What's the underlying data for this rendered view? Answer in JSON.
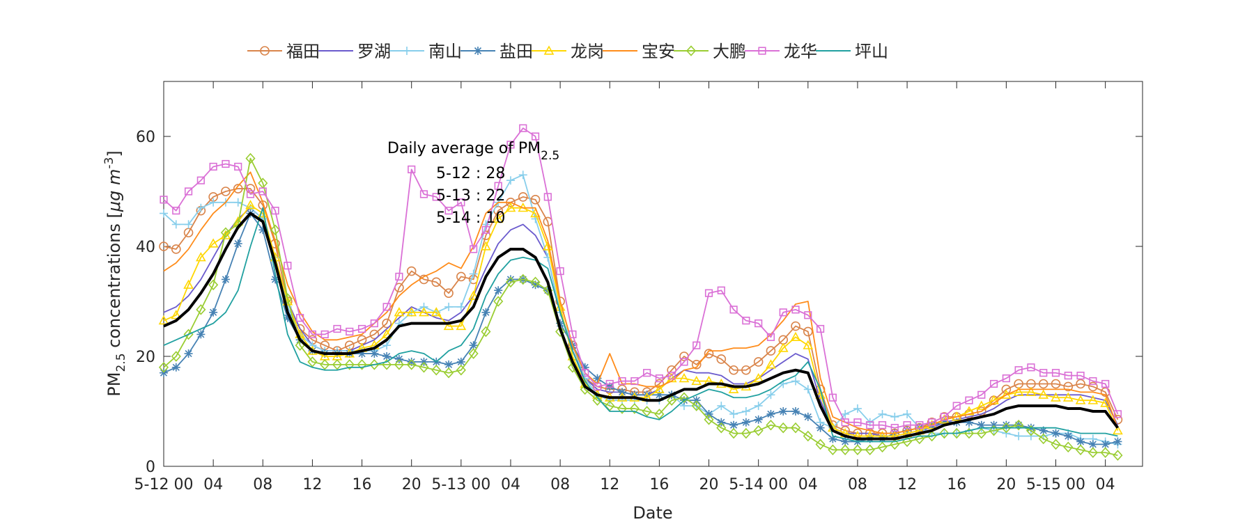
{
  "chart_data": {
    "type": "line",
    "xlabel": "Date",
    "ylabel_main": "PM",
    "ylabel_sub": "2.5",
    "ylabel_rest": " concentrations [",
    "ylabel_mu": "μg m",
    "ylabel_sup": "-3",
    "ylabel_close": "]",
    "ylim": [
      0,
      70
    ],
    "yticks": [
      0,
      20,
      40,
      60
    ],
    "x_range_hours": [
      0,
      79
    ],
    "xticks": [
      {
        "h": 0,
        "label": "5-12 00"
      },
      {
        "h": 4,
        "label": "04"
      },
      {
        "h": 8,
        "label": "08"
      },
      {
        "h": 12,
        "label": "12"
      },
      {
        "h": 16,
        "label": "16"
      },
      {
        "h": 20,
        "label": "20"
      },
      {
        "h": 24,
        "label": "5-13 00"
      },
      {
        "h": 28,
        "label": "04"
      },
      {
        "h": 32,
        "label": "08"
      },
      {
        "h": 36,
        "label": "12"
      },
      {
        "h": 40,
        "label": "16"
      },
      {
        "h": 44,
        "label": "20"
      },
      {
        "h": 48,
        "label": "5-14 00"
      },
      {
        "h": 52,
        "label": "04"
      },
      {
        "h": 56,
        "label": "08"
      },
      {
        "h": 60,
        "label": "12"
      },
      {
        "h": 64,
        "label": "16"
      },
      {
        "h": 68,
        "label": "20"
      },
      {
        "h": 72,
        "label": "5-15 00"
      },
      {
        "h": 76,
        "label": "04"
      }
    ],
    "legend_position": "top",
    "annotation": {
      "title_main": "Daily average of PM",
      "title_sub": "2.5",
      "lines": [
        "5-12 : 28",
        "5-13 : 22",
        "5-14 : 10"
      ]
    },
    "colors": {
      "futian": "#D9844A",
      "luohu": "#6A5ACD",
      "nanshan": "#87CEEB",
      "yantian": "#4682B4",
      "longgang": "#FFD700",
      "baoan": "#FF8C1A",
      "dapeng": "#9ACD32",
      "longhua": "#DA70D6",
      "pingshan": "#20A0A0",
      "average": "#000000"
    },
    "series": [
      {
        "name": "福田",
        "key": "futian",
        "marker": "circle",
        "values": [
          40,
          39.5,
          42.5,
          46.5,
          49,
          50,
          50.5,
          50.5,
          47.5,
          40.5,
          30,
          25,
          23,
          22,
          21,
          22,
          23,
          24,
          26,
          32.5,
          35.5,
          34,
          33.5,
          31.5,
          34.5,
          34,
          42,
          46.5,
          48,
          49,
          48.5,
          44.5,
          30,
          22,
          16,
          14.5,
          14,
          14,
          13.5,
          13.5,
          15,
          17.5,
          20,
          18.5,
          20.5,
          19.5,
          17.5,
          17.5,
          19,
          21,
          23,
          25.5,
          24.5,
          14,
          7.5,
          6.5,
          6,
          6,
          6,
          6,
          6.5,
          7,
          8,
          9,
          9,
          9.5,
          10,
          12,
          14,
          15,
          15,
          15,
          15,
          14.5,
          15,
          14.5,
          13.5,
          8.5
        ]
      },
      {
        "name": "罗湖",
        "key": "luohu",
        "marker": "none",
        "values": [
          28,
          29,
          31,
          34,
          38,
          42,
          45,
          47,
          45,
          38,
          30,
          25,
          22,
          21,
          21,
          21,
          22,
          23,
          25,
          27,
          29,
          28,
          27,
          26.5,
          28,
          31,
          36,
          40.5,
          43,
          44,
          42,
          38,
          28,
          21,
          16,
          14,
          13.5,
          13.5,
          13,
          13,
          14,
          16,
          17.5,
          17,
          17,
          16.5,
          15,
          15,
          16,
          17.5,
          19,
          20.5,
          19.5,
          12,
          7,
          6,
          6,
          6,
          5.5,
          5.5,
          6,
          6.5,
          7,
          8,
          8.5,
          9,
          9.5,
          10.5,
          12,
          13,
          13,
          13,
          13,
          13,
          13,
          12.5,
          12,
          7.5
        ]
      },
      {
        "name": "南山",
        "key": "nanshan",
        "marker": "plus",
        "values": [
          46,
          44,
          44,
          47,
          48,
          48,
          48,
          47,
          45,
          38,
          29,
          24,
          22,
          21,
          21,
          21,
          21,
          21,
          22,
          26,
          28,
          29,
          28,
          29,
          29,
          35,
          44,
          48,
          52,
          53,
          45,
          38,
          28,
          22,
          16,
          13,
          12,
          12,
          12,
          12,
          12,
          13,
          11,
          11,
          9.5,
          11,
          9.5,
          10,
          11,
          13,
          15,
          15.5,
          14,
          8,
          7,
          9.5,
          10.5,
          8,
          9.5,
          9,
          9.5,
          7,
          6,
          6,
          6,
          6.5,
          7,
          6.5,
          6,
          5.5,
          5.5,
          5.5,
          6,
          6,
          5,
          5,
          4.5,
          4
        ]
      },
      {
        "name": "盐田",
        "key": "yantian",
        "marker": "asterisk",
        "values": [
          17,
          18,
          20.5,
          24,
          28,
          34,
          40.5,
          46,
          43,
          34,
          27,
          23,
          21,
          20.5,
          20.5,
          20.5,
          20.5,
          20.5,
          20,
          19.5,
          19,
          19,
          19,
          18.5,
          19,
          22,
          28,
          32,
          34,
          34,
          33,
          32,
          26,
          22,
          18,
          16,
          14.5,
          13.5,
          13,
          13,
          13,
          13,
          12,
          12,
          9.5,
          8,
          7.5,
          8,
          8.5,
          9.5,
          10,
          10,
          9,
          7,
          5,
          4.5,
          4.5,
          5,
          5,
          6,
          6.5,
          7,
          7.5,
          8,
          8,
          8,
          7.5,
          7.5,
          7.5,
          7.5,
          7,
          6.5,
          6,
          5.5,
          4.5,
          4,
          4,
          4.5
        ]
      },
      {
        "name": "龙岗",
        "key": "longgang",
        "marker": "triangle",
        "values": [
          26.5,
          27.5,
          33,
          38,
          40.5,
          42,
          44.5,
          47.5,
          46,
          38,
          30,
          24,
          21,
          20,
          20,
          20.5,
          21.5,
          22,
          24,
          28,
          28,
          28,
          28,
          25.5,
          25.5,
          31,
          40,
          45,
          47,
          47,
          46,
          40,
          29,
          20,
          15,
          13,
          12.5,
          12.5,
          12.5,
          12.5,
          14,
          16,
          16,
          15.5,
          15.5,
          15,
          14,
          14.5,
          16,
          18.5,
          21.5,
          23.5,
          22,
          13,
          7,
          6,
          5.5,
          5.5,
          5.5,
          5.5,
          6,
          6.5,
          7.5,
          8.5,
          9,
          10,
          11,
          12,
          13,
          13.5,
          13.5,
          13,
          12.5,
          12.5,
          12,
          12,
          11.5,
          6.5
        ]
      },
      {
        "name": "宝安",
        "key": "baoan",
        "marker": "none",
        "values": [
          35.5,
          37,
          39.5,
          43,
          46,
          48,
          51,
          53.5,
          48,
          41,
          33,
          28,
          24.5,
          23,
          23,
          23.5,
          24,
          26,
          28,
          31,
          33,
          34.5,
          35.5,
          37,
          36,
          40,
          46,
          48,
          48,
          47,
          47,
          41,
          30,
          22,
          17,
          15,
          20.5,
          15,
          15,
          14.5,
          14.5,
          15.5,
          17.5,
          18,
          21,
          21,
          21.5,
          21.5,
          22,
          24,
          26.5,
          29.5,
          30,
          16,
          9,
          8,
          7,
          6.5,
          6,
          6,
          6.5,
          7,
          7.5,
          8.5,
          9,
          9.5,
          10,
          11.5,
          13,
          14,
          14,
          14,
          14,
          14,
          13.5,
          13.5,
          13,
          7
        ]
      },
      {
        "name": "大鹏",
        "key": "dapeng",
        "marker": "diamond",
        "values": [
          18,
          20,
          24,
          28.5,
          33,
          42.5,
          44,
          56,
          51.5,
          43,
          30.5,
          22,
          19,
          18.5,
          18.5,
          18.5,
          18.5,
          18.5,
          18.5,
          18.5,
          18.5,
          18,
          17.5,
          17,
          17.5,
          20.5,
          24.5,
          30,
          33.5,
          34,
          33.5,
          32,
          24.5,
          18,
          14,
          12,
          11,
          10.5,
          10.5,
          10,
          9.5,
          12,
          12.5,
          11,
          8.5,
          7,
          6,
          6,
          6.5,
          7.5,
          7,
          7,
          5.5,
          4,
          3,
          3,
          3,
          3,
          3.5,
          4,
          4.5,
          5,
          5.5,
          6,
          6,
          6,
          6,
          6.5,
          7,
          7.5,
          6.5,
          5,
          4,
          3.5,
          3,
          2.5,
          2.5,
          2
        ]
      },
      {
        "name": "龙华",
        "key": "longhua",
        "marker": "square",
        "values": [
          48.5,
          46.5,
          50,
          52,
          54.5,
          55,
          54.5,
          49.5,
          50,
          46.5,
          36.5,
          27,
          24,
          24,
          25,
          24.5,
          25,
          26,
          29,
          34.5,
          54,
          49.5,
          49,
          46.5,
          48,
          39.5,
          43,
          51,
          58.5,
          61.5,
          60,
          49,
          35.5,
          24,
          17,
          14.5,
          15,
          15.5,
          15.5,
          17,
          16,
          16.5,
          19,
          22,
          31.5,
          32,
          28.5,
          26.5,
          26,
          23.5,
          28,
          28.5,
          27.5,
          25,
          12.5,
          8,
          8,
          7.5,
          7.5,
          7,
          7.5,
          7.5,
          8,
          9,
          11,
          12,
          13,
          15,
          16,
          17.5,
          18,
          17,
          17,
          16.5,
          16.5,
          15.5,
          15,
          9.5
        ]
      },
      {
        "name": "坪山",
        "key": "pingshan",
        "marker": "none",
        "values": [
          22,
          23,
          24,
          25,
          26,
          28,
          32,
          40,
          47,
          35,
          24,
          19,
          18,
          17.5,
          17.5,
          18,
          18,
          18.5,
          19,
          20.5,
          21,
          20.5,
          19,
          21,
          22,
          25,
          31,
          35,
          37.5,
          38,
          37.5,
          36,
          28,
          21,
          15.5,
          12.5,
          10,
          10,
          10,
          9,
          8.5,
          10,
          12,
          13,
          14,
          13.5,
          12.5,
          12.5,
          13,
          14,
          15.5,
          16.5,
          19,
          14,
          5.5,
          5,
          4.5,
          4.5,
          4.5,
          4.5,
          5,
          5.5,
          5.5,
          6,
          6,
          6.5,
          7,
          7,
          7,
          7,
          7,
          7,
          7,
          6.5,
          6,
          6,
          6,
          5.5
        ]
      },
      {
        "name": "",
        "key": "average",
        "marker": "none",
        "thick": true,
        "values": [
          25.5,
          26.5,
          28.5,
          31.5,
          35,
          39.5,
          43.5,
          46,
          44.5,
          37,
          28,
          23,
          21,
          20.5,
          20.5,
          20.5,
          21,
          21.5,
          23,
          25.5,
          26,
          26,
          26,
          26,
          26.5,
          29,
          34.5,
          38,
          39.5,
          39.5,
          38,
          33.5,
          25,
          19,
          14.5,
          13,
          12.5,
          12.5,
          12.5,
          12,
          12,
          13,
          14,
          14,
          15,
          15,
          14.5,
          14.5,
          15,
          16,
          17,
          17.5,
          17,
          11,
          6.5,
          5.5,
          5,
          5,
          5,
          5,
          5.5,
          6,
          6.5,
          7.5,
          8,
          8.5,
          9,
          9.5,
          10.5,
          11,
          11,
          11,
          11,
          10.5,
          10.5,
          10,
          10,
          7
        ]
      }
    ]
  }
}
